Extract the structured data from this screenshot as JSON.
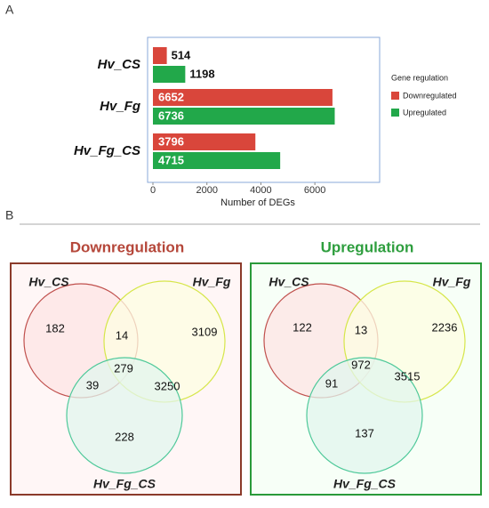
{
  "panel_a_label": "A",
  "chart_data": {
    "type": "bar",
    "orientation": "horizontal",
    "categories": [
      "Hv_CS",
      "Hv_Fg",
      "Hv_Fg_CS"
    ],
    "series": [
      {
        "name": "Downregulated",
        "color": "#d9463b",
        "values": [
          514,
          6652,
          3796
        ]
      },
      {
        "name": "Upregulated",
        "color": "#22a84a",
        "values": [
          1198,
          6736,
          4715
        ]
      }
    ],
    "xlabel": "Number of DEGs",
    "xlim": [
      0,
      8400
    ],
    "xticks": [
      0,
      2000,
      4000,
      6000
    ],
    "legend_title": "Gene regulation",
    "legend": "right"
  },
  "panel_b_label": "B",
  "venn": [
    {
      "title": "Downregulation",
      "color": "#b5473a",
      "sets": [
        "Hv_CS",
        "Hv_Fg",
        "Hv_Fg_CS"
      ],
      "regions": [
        182,
        14,
        3109,
        279,
        39,
        3250,
        228
      ]
    },
    {
      "title": "Upregulation",
      "color": "#2e9e3e",
      "sets": [
        "Hv_CS",
        "Hv_Fg",
        "Hv_Fg_CS"
      ],
      "regions": [
        122,
        13,
        2236,
        972,
        91,
        3515,
        137
      ]
    }
  ]
}
